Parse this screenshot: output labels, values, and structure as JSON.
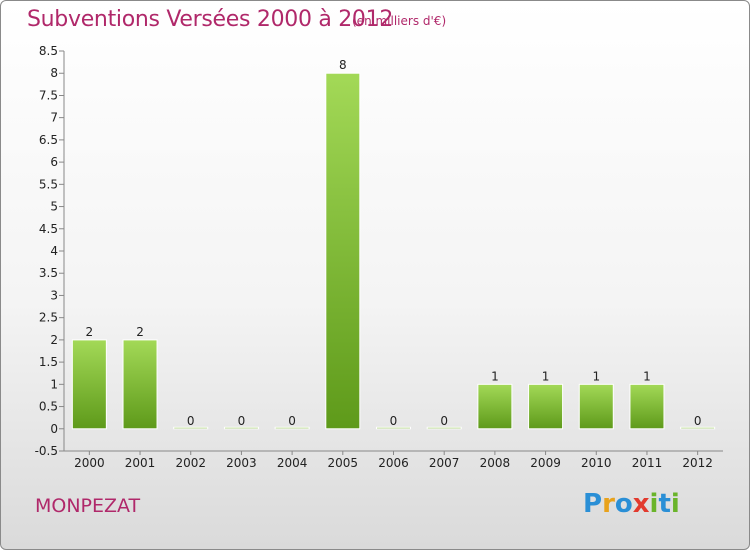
{
  "chart_data": {
    "type": "bar",
    "title": "Subventions Versées 2000 à 2012",
    "subtitle": "(en milliers d'€)",
    "categories": [
      "2000",
      "2001",
      "2002",
      "2003",
      "2004",
      "2005",
      "2006",
      "2007",
      "2008",
      "2009",
      "2010",
      "2011",
      "2012"
    ],
    "values": [
      2,
      2,
      0,
      0,
      0,
      8,
      0,
      0,
      1,
      1,
      1,
      1,
      0
    ],
    "value_labels": [
      "2",
      "2",
      "0",
      "0",
      "0",
      "8",
      "0",
      "0",
      "1",
      "1",
      "1",
      "1",
      "0"
    ],
    "yticks": [
      "-0.5",
      "0",
      "0.5",
      "1",
      "1.5",
      "2",
      "2.5",
      "3",
      "3.5",
      "4",
      "4.5",
      "5",
      "5.5",
      "6",
      "6.5",
      "7",
      "7.5",
      "8",
      "8.5"
    ],
    "ylim": [
      -0.5,
      8.5
    ],
    "grid": false,
    "colors": {
      "bar_top": "#9bd44e",
      "bar_bottom": "#5e9a1a",
      "text": "#b0286a"
    }
  },
  "commune": "MONPEZAT",
  "logo": {
    "letters": [
      "P",
      "r",
      "o",
      "x",
      "i",
      "t",
      "i"
    ],
    "colors": [
      "#2a8fd6",
      "#e8a21c",
      "#2a8fd6",
      "#e23a2e",
      "#6ab42a",
      "#2a8fd6",
      "#6ab42a"
    ]
  }
}
